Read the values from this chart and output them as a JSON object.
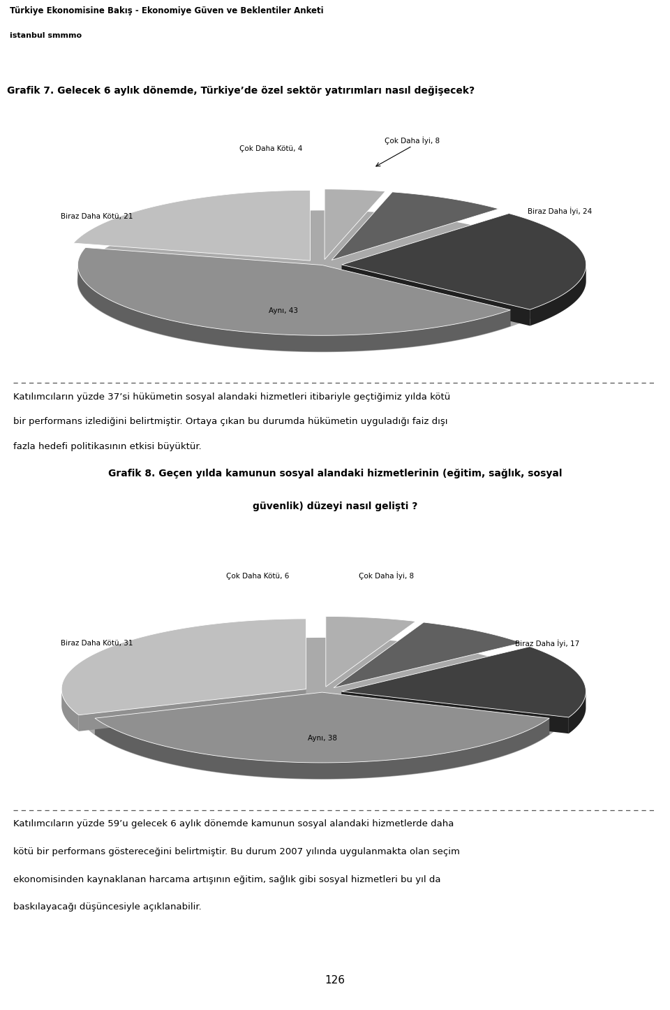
{
  "header_title": "Türkiye Ekonomisine Bakış - Ekonomiye Güven ve Beklentiler Anketi",
  "header_sub": "istanbul smmmo",
  "grafik7_title": "Grafik 7. Gelecek 6 aylık dönemde, Türkiye’de özel sektör yatırımları nasıl değişecek?",
  "grafik7_values": [
    4,
    8,
    24,
    43,
    21
  ],
  "grafik7_labels": [
    "Çok Daha Kötü, 4",
    "Çok Daha İyi, 8",
    "Biraz Daha İyi, 24",
    "Aynı, 43",
    "Biraz Daha Kötü, 21"
  ],
  "grafik7_colors": [
    "#b0b0b0",
    "#606060",
    "#404040",
    "#909090",
    "#c0c0c0"
  ],
  "grafik7_shadow_colors": [
    "#808080",
    "#303030",
    "#202020",
    "#606060",
    "#909090"
  ],
  "grafik7_explode": [
    0.08,
    0.08,
    0.08,
    0.0,
    0.08
  ],
  "text1_line1": "Katılımcıların yüzde 37’si hükümetin sosyal alandaki hizmetleri itibariyle geçtiğimiz yılda kötü",
  "text1_line2": "bir performans izlediğini belirtmiştir. Ortaya çıkan bu durumda hükümetin uyguladığı faiz dışı",
  "text1_line3": "fazla hedefi politikasının etkisi büyüktür.",
  "grafik8_title_line1": "Grafik 8. Geçen yılda kamunun sosyal alandaki hizmetlerinin (eğitim, sağlık, sosyal",
  "grafik8_title_line2": "güvenlik) düzeyi nasıl gelişti ?",
  "grafik8_values": [
    6,
    8,
    17,
    38,
    31
  ],
  "grafik8_labels": [
    "Çok Daha Kötü, 6",
    "Çok Daha İyi, 8",
    "Biraz Daha İyi, 17",
    "Aynı, 38",
    "Biraz Daha Kötü, 31"
  ],
  "grafik8_colors": [
    "#b0b0b0",
    "#606060",
    "#404040",
    "#909090",
    "#c0c0c0"
  ],
  "grafik8_shadow_colors": [
    "#808080",
    "#303030",
    "#202020",
    "#606060",
    "#909090"
  ],
  "grafik8_explode": [
    0.08,
    0.08,
    0.08,
    0.0,
    0.08
  ],
  "text2_line1": "Katılımcıların yüzde 59’u gelecek 6 aylık dönemde kamunun sosyal alandaki hizmetlerde daha",
  "text2_line2": "kötü bir performans göstereceğini belirtmiştir. Bu durum 2007 yılında uygulanmakta olan seçim",
  "text2_line3": "ekonomisinden kaynaklanan harcama artışının eğitim, sağlık gibi sosyal hizmetleri bu yıl da",
  "text2_line4": "baskılayacağı düşüncesiyle açıklanabilir.",
  "page_number": "126",
  "bg_color": "#ffffff"
}
